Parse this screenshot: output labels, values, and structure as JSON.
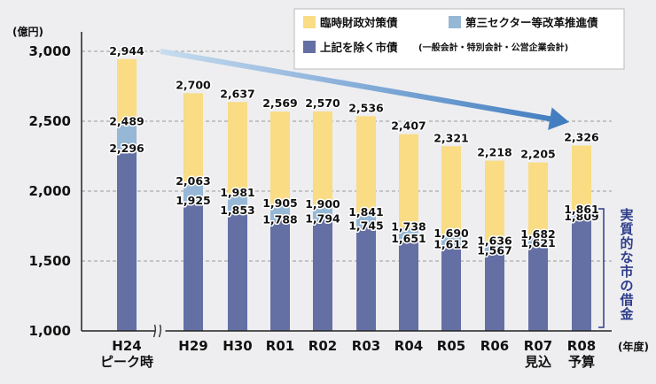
{
  "chart_data": {
    "type": "bar",
    "y_unit": "(億円)",
    "x_unit": "(年度)",
    "ylim": [
      1000,
      3000
    ],
    "yticks": [
      "1,000",
      "1,500",
      "2,000",
      "2,500",
      "3,000"
    ],
    "ytick_values": [
      1000,
      1500,
      2000,
      2500,
      3000
    ],
    "categories": [
      {
        "label": "H24",
        "sub": "ピーク時"
      },
      {
        "label": "H29",
        "sub": ""
      },
      {
        "label": "H30",
        "sub": ""
      },
      {
        "label": "R01",
        "sub": ""
      },
      {
        "label": "R02",
        "sub": ""
      },
      {
        "label": "R03",
        "sub": ""
      },
      {
        "label": "R04",
        "sub": ""
      },
      {
        "label": "R05",
        "sub": ""
      },
      {
        "label": "R06",
        "sub": ""
      },
      {
        "label": "R07",
        "sub": "見込"
      },
      {
        "label": "R08",
        "sub": "予算"
      }
    ],
    "series": [
      {
        "name": "上記を除く市債",
        "note": "(一般会計・特別会計・公営企業会計)",
        "color": "#6470a4",
        "values": [
          2296,
          1925,
          1853,
          1788,
          1794,
          1745,
          1651,
          1612,
          1567,
          1621,
          1809
        ]
      },
      {
        "name": "第三セクター等改革推進債",
        "note": "",
        "color": "#96b8d6",
        "values": [
          2489,
          2063,
          1981,
          1905,
          1900,
          1841,
          1738,
          1690,
          1636,
          1682,
          1861
        ]
      },
      {
        "name": "臨時財政対策債",
        "note": "",
        "color": "#f9dc84",
        "values": [
          2944,
          2700,
          2637,
          2569,
          2570,
          2536,
          2407,
          2321,
          2218,
          2205,
          2326
        ]
      }
    ],
    "value_labels": [
      [
        "2,296",
        "1,925",
        "1,853",
        "1,788",
        "1,794",
        "1,745",
        "1,651",
        "1,612",
        "1,567",
        "1,621",
        "1,809"
      ],
      [
        "2,489",
        "2,063",
        "1,981",
        "1,905",
        "1,900",
        "1,841",
        "1,738",
        "1,690",
        "1,636",
        "1,682",
        "1,861"
      ],
      [
        "2,944",
        "2,700",
        "2,637",
        "2,569",
        "2,570",
        "2,536",
        "2,407",
        "2,321",
        "2,218",
        "2,205",
        "2,326"
      ]
    ],
    "axis_break_after": 0,
    "bracket_label": "実質的な市の借金",
    "trend_arrow": {
      "from_category": 0,
      "to_category": 10
    },
    "grid": true,
    "legend_position": "top-right",
    "colors": {
      "arrow": "#3f7bbf",
      "grid": "#999999",
      "bracket": "#2d3d8a"
    }
  }
}
